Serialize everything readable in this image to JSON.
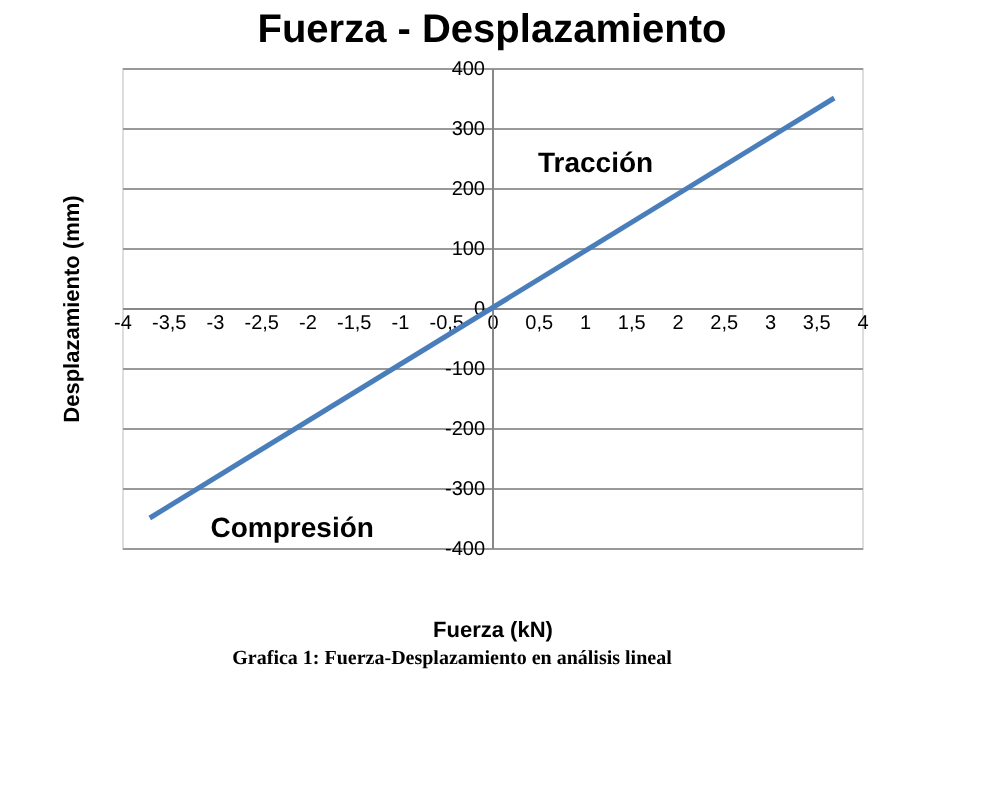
{
  "chart_data": {
    "type": "line",
    "title": "Fuerza - Desplazamiento",
    "xlabel": "Fuerza (kN)",
    "ylabel": "Desplazamiento (mm)",
    "x": [
      -3.7,
      0,
      3.7
    ],
    "series": [
      {
        "color": "#4a7ebb",
        "values": [
          -350,
          0,
          350
        ]
      }
    ],
    "xlim": [
      -4,
      4
    ],
    "xticks": [
      -4,
      {
        "value": -3.5,
        "label": "-3,5"
      },
      -3,
      {
        "value": -2.5,
        "label": "-2,5"
      },
      -2,
      {
        "value": -1.5,
        "label": "-1,5"
      },
      -1,
      {
        "value": -0.5,
        "label": "-0,5"
      },
      0,
      {
        "value": 0.5,
        "label": "0,5"
      },
      1,
      {
        "value": 1.5,
        "label": "1,5"
      },
      2,
      {
        "value": 2.5,
        "label": "2,5"
      },
      3,
      {
        "value": 3.5,
        "label": "3,5"
      },
      4
    ],
    "ylim": [
      -400,
      400
    ],
    "yticks": [
      -400,
      -300,
      -200,
      -100,
      0,
      100,
      200,
      300,
      400
    ],
    "grid": "y",
    "marker": "none",
    "line_style": "solid",
    "annotations": [
      "Tracción",
      "Compresión",
      "Grafica 1: Fuerza-Desplazamiento en análisis lineal"
    ]
  }
}
